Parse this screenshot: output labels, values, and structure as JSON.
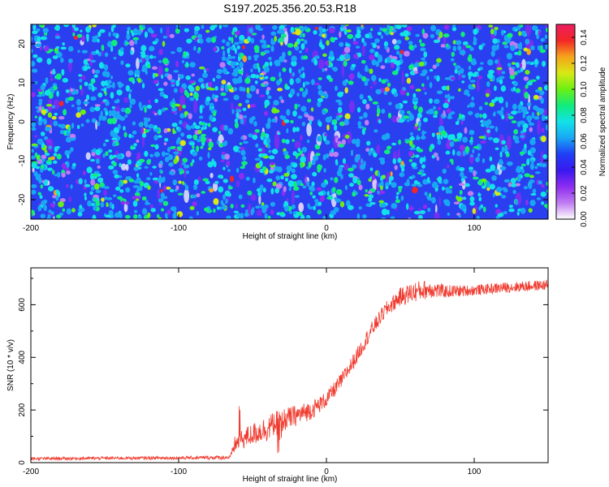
{
  "title": "S197.2025.356.20.53.R18",
  "colors": {
    "line": "#f03a2e",
    "axis": "#000000",
    "colormap": [
      "#ffffff",
      "#c07cf2",
      "#8e2cf0",
      "#3a18f0",
      "#1f3ff5",
      "#19a6f4",
      "#12e2e8",
      "#10ec7c",
      "#6cf014",
      "#d8e814",
      "#f6a41c",
      "#f22626",
      "#ee1e60"
    ]
  },
  "chart_data": [
    {
      "type": "heatmap",
      "title": "S197.2025.356.20.53.R18",
      "xlabel": "Height of straight line (km)",
      "ylabel": "Frequency (Hz)",
      "xlim": [
        -200,
        150
      ],
      "ylim": [
        -25,
        25
      ],
      "xticks": [
        -200,
        -100,
        0,
        100
      ],
      "yticks": [
        -20,
        -10,
        0,
        10,
        20
      ],
      "colorbar": {
        "label": "Normalized spectral amplitude",
        "range": [
          0.0,
          0.15
        ],
        "ticks": [
          "0.00",
          "0.02",
          "0.04",
          "0.06",
          "0.08",
          "0.10",
          "0.12",
          "0.14"
        ]
      },
      "description_of_values": "noise-like speckle field of normalized amplitudes, mostly 0.02-0.06 with sparse peaks up to ~0.14"
    },
    {
      "type": "line",
      "xlabel": "Height of straight line (km)",
      "ylabel": "SNR (10 * v/v)",
      "xlim": [
        -200,
        150
      ],
      "ylim": [
        0,
        740
      ],
      "xticks": [
        -200,
        -100,
        0,
        100
      ],
      "yticks": [
        0,
        200,
        400,
        600
      ],
      "series": [
        {
          "name": "SNR",
          "x": [
            -200,
            -150,
            -100,
            -65,
            -62,
            -55,
            -45,
            -40,
            -35,
            -30,
            -20,
            -10,
            0,
            10,
            20,
            30,
            40,
            50,
            60,
            70,
            80,
            100,
            120,
            150
          ],
          "y": [
            15,
            17,
            18,
            20,
            70,
            95,
            120,
            130,
            150,
            160,
            180,
            200,
            240,
            310,
            400,
            500,
            580,
            630,
            650,
            660,
            650,
            655,
            665,
            675
          ],
          "noise": [
            6,
            6,
            6,
            8,
            30,
            40,
            45,
            50,
            45,
            45,
            40,
            35,
            30,
            30,
            30,
            30,
            30,
            35,
            40,
            35,
            25,
            20,
            20,
            20
          ]
        }
      ]
    }
  ]
}
